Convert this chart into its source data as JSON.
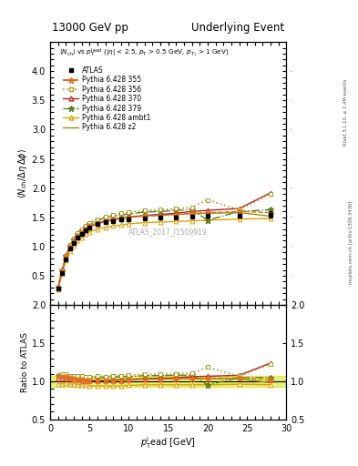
{
  "title_left": "13000 GeV pp",
  "title_right": "Underlying Event",
  "annotation": "ATLAS_2017_I1509919",
  "right_label_top": "Rivet 3.1.10, ≥ 2.4M events",
  "right_label_bottom": "mcplots.cern.ch [arXiv:1306.3436]",
  "xlim": [
    0,
    30
  ],
  "ylim_main": [
    0,
    4.5
  ],
  "ylim_ratio": [
    0.5,
    2.0
  ],
  "yticks_main": [
    0.5,
    1.0,
    1.5,
    2.0,
    2.5,
    3.0,
    3.5,
    4.0
  ],
  "yticks_ratio": [
    0.5,
    1.0,
    1.5,
    2.0
  ],
  "atlas_x": [
    1.0,
    1.5,
    2.0,
    2.5,
    3.0,
    3.5,
    4.0,
    4.5,
    5.0,
    6.0,
    7.0,
    8.0,
    9.0,
    10.0,
    12.0,
    14.0,
    16.0,
    18.0,
    20.0,
    24.0,
    28.0
  ],
  "atlas_y": [
    0.28,
    0.55,
    0.78,
    0.96,
    1.06,
    1.15,
    1.22,
    1.28,
    1.33,
    1.38,
    1.42,
    1.44,
    1.46,
    1.47,
    1.48,
    1.49,
    1.5,
    1.51,
    1.52,
    1.53,
    1.55
  ],
  "atlas_yerr": [
    0.01,
    0.01,
    0.01,
    0.01,
    0.01,
    0.01,
    0.01,
    0.01,
    0.01,
    0.01,
    0.01,
    0.02,
    0.02,
    0.02,
    0.02,
    0.02,
    0.02,
    0.02,
    0.03,
    0.03,
    0.05
  ],
  "p355_x": [
    1.0,
    1.5,
    2.0,
    2.5,
    3.0,
    3.5,
    4.0,
    4.5,
    5.0,
    6.0,
    7.0,
    8.0,
    9.0,
    10.0,
    12.0,
    14.0,
    16.0,
    18.0,
    20.0,
    24.0,
    28.0
  ],
  "p355_y": [
    0.3,
    0.58,
    0.83,
    1.0,
    1.1,
    1.18,
    1.25,
    1.3,
    1.35,
    1.4,
    1.44,
    1.46,
    1.48,
    1.5,
    1.52,
    1.53,
    1.55,
    1.57,
    1.58,
    1.6,
    1.58
  ],
  "p356_x": [
    1.0,
    1.5,
    2.0,
    2.5,
    3.0,
    3.5,
    4.0,
    4.5,
    5.0,
    6.0,
    7.0,
    8.0,
    9.0,
    10.0,
    12.0,
    14.0,
    16.0,
    18.0,
    20.0,
    24.0,
    28.0
  ],
  "p356_y": [
    0.3,
    0.6,
    0.85,
    1.03,
    1.14,
    1.23,
    1.3,
    1.36,
    1.41,
    1.47,
    1.51,
    1.54,
    1.57,
    1.59,
    1.62,
    1.63,
    1.65,
    1.67,
    1.8,
    1.63,
    1.9
  ],
  "p370_x": [
    1.0,
    1.5,
    2.0,
    2.5,
    3.0,
    3.5,
    4.0,
    4.5,
    5.0,
    6.0,
    7.0,
    8.0,
    9.0,
    10.0,
    12.0,
    14.0,
    16.0,
    18.0,
    20.0,
    24.0,
    28.0
  ],
  "p370_y": [
    0.29,
    0.57,
    0.82,
    0.99,
    1.09,
    1.17,
    1.24,
    1.29,
    1.34,
    1.39,
    1.43,
    1.46,
    1.48,
    1.5,
    1.53,
    1.55,
    1.57,
    1.6,
    1.62,
    1.65,
    1.92
  ],
  "p379_x": [
    1.0,
    1.5,
    2.0,
    2.5,
    3.0,
    3.5,
    4.0,
    4.5,
    5.0,
    6.0,
    7.0,
    8.0,
    9.0,
    10.0,
    12.0,
    14.0,
    16.0,
    18.0,
    20.0,
    24.0,
    28.0
  ],
  "p379_y": [
    0.3,
    0.59,
    0.84,
    1.02,
    1.12,
    1.21,
    1.28,
    1.34,
    1.39,
    1.45,
    1.49,
    1.52,
    1.54,
    1.56,
    1.59,
    1.6,
    1.62,
    1.63,
    1.45,
    1.6,
    1.63
  ],
  "pambt1_x": [
    1.0,
    1.5,
    2.0,
    2.5,
    3.0,
    3.5,
    4.0,
    4.5,
    5.0,
    6.0,
    7.0,
    8.0,
    9.0,
    10.0,
    12.0,
    14.0,
    16.0,
    18.0,
    20.0,
    24.0,
    28.0
  ],
  "pambt1_y": [
    0.27,
    0.53,
    0.76,
    0.92,
    1.02,
    1.1,
    1.16,
    1.21,
    1.25,
    1.3,
    1.33,
    1.35,
    1.37,
    1.39,
    1.41,
    1.42,
    1.43,
    1.44,
    1.45,
    1.47,
    1.48
  ],
  "pz2_x": [
    1.0,
    1.5,
    2.0,
    2.5,
    3.0,
    3.5,
    4.0,
    4.5,
    5.0,
    6.0,
    7.0,
    8.0,
    9.0,
    10.0,
    12.0,
    14.0,
    16.0,
    18.0,
    20.0,
    24.0,
    28.0
  ],
  "pz2_y": [
    0.29,
    0.57,
    0.82,
    0.99,
    1.09,
    1.17,
    1.24,
    1.3,
    1.35,
    1.4,
    1.44,
    1.47,
    1.49,
    1.51,
    1.53,
    1.54,
    1.55,
    1.56,
    1.57,
    1.58,
    1.52
  ],
  "color_355": "#e07020",
  "color_356": "#a0a020",
  "color_370": "#c02020",
  "color_379": "#608020",
  "color_ambt1": "#e0a000",
  "color_z2": "#909010",
  "z2_band_color": "#d0e000"
}
